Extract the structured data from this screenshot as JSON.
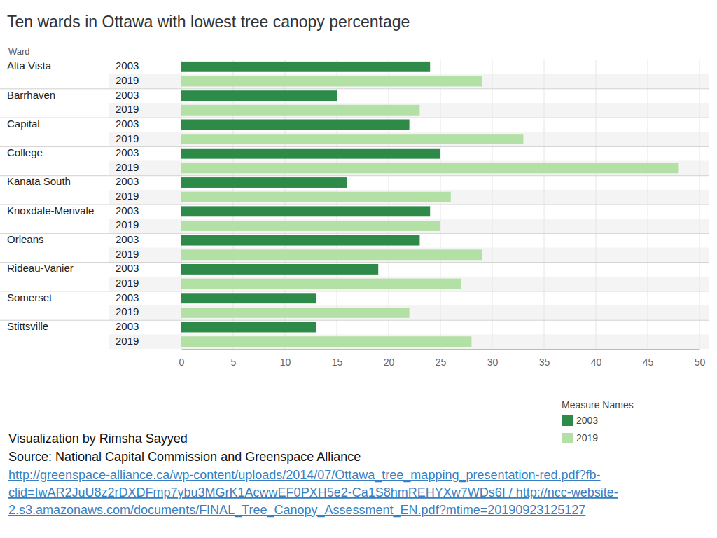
{
  "chart_data": {
    "type": "bar",
    "orientation": "horizontal",
    "title": "Ten wards in Ottawa with lowest tree canopy percentage",
    "y_label": "Ward",
    "categories": [
      "Alta Vista",
      "Barrhaven",
      "Capital",
      "College",
      "Kanata South",
      "Knoxdale-Merivale",
      "Orleans",
      "Rideau-Vanier",
      "Somerset",
      "Stittsville"
    ],
    "series": [
      {
        "name": "2003",
        "color": "#2d8a49",
        "values": [
          24,
          15,
          22,
          25,
          16,
          24,
          23,
          19,
          13,
          13
        ]
      },
      {
        "name": "2019",
        "color": "#b3e0a5",
        "values": [
          29,
          23,
          33,
          48,
          26,
          25,
          29,
          27,
          22,
          28
        ]
      }
    ],
    "xlim": [
      0,
      50
    ],
    "xticks": [
      0,
      5,
      10,
      15,
      20,
      25,
      30,
      35,
      40,
      45,
      50
    ],
    "grid": true,
    "legend": "bottom-right",
    "legend_title": "Measure Names",
    "annotations": [
      "Visualization by Rimsha Sayyed",
      "Source: National Capital Commission and Greenspace Alliance"
    ],
    "links": [
      "http://greenspace-alliance.ca/wp-content/uploads/2014/07/Ottawa_tree_mapping_presentation-red.pdf?fb-",
      "clid=IwAR2JuU8z2rDXDFmp7ybu3MGrK1AcwwEF0PXH5e2-Ca1S8hmREHYXw7WDs6I / http://ncc-website-",
      "2.s3.amazonaws.com/documents/FINAL_Tree_Canopy_Assessment_EN.pdf?mtime=20190923125127"
    ]
  }
}
